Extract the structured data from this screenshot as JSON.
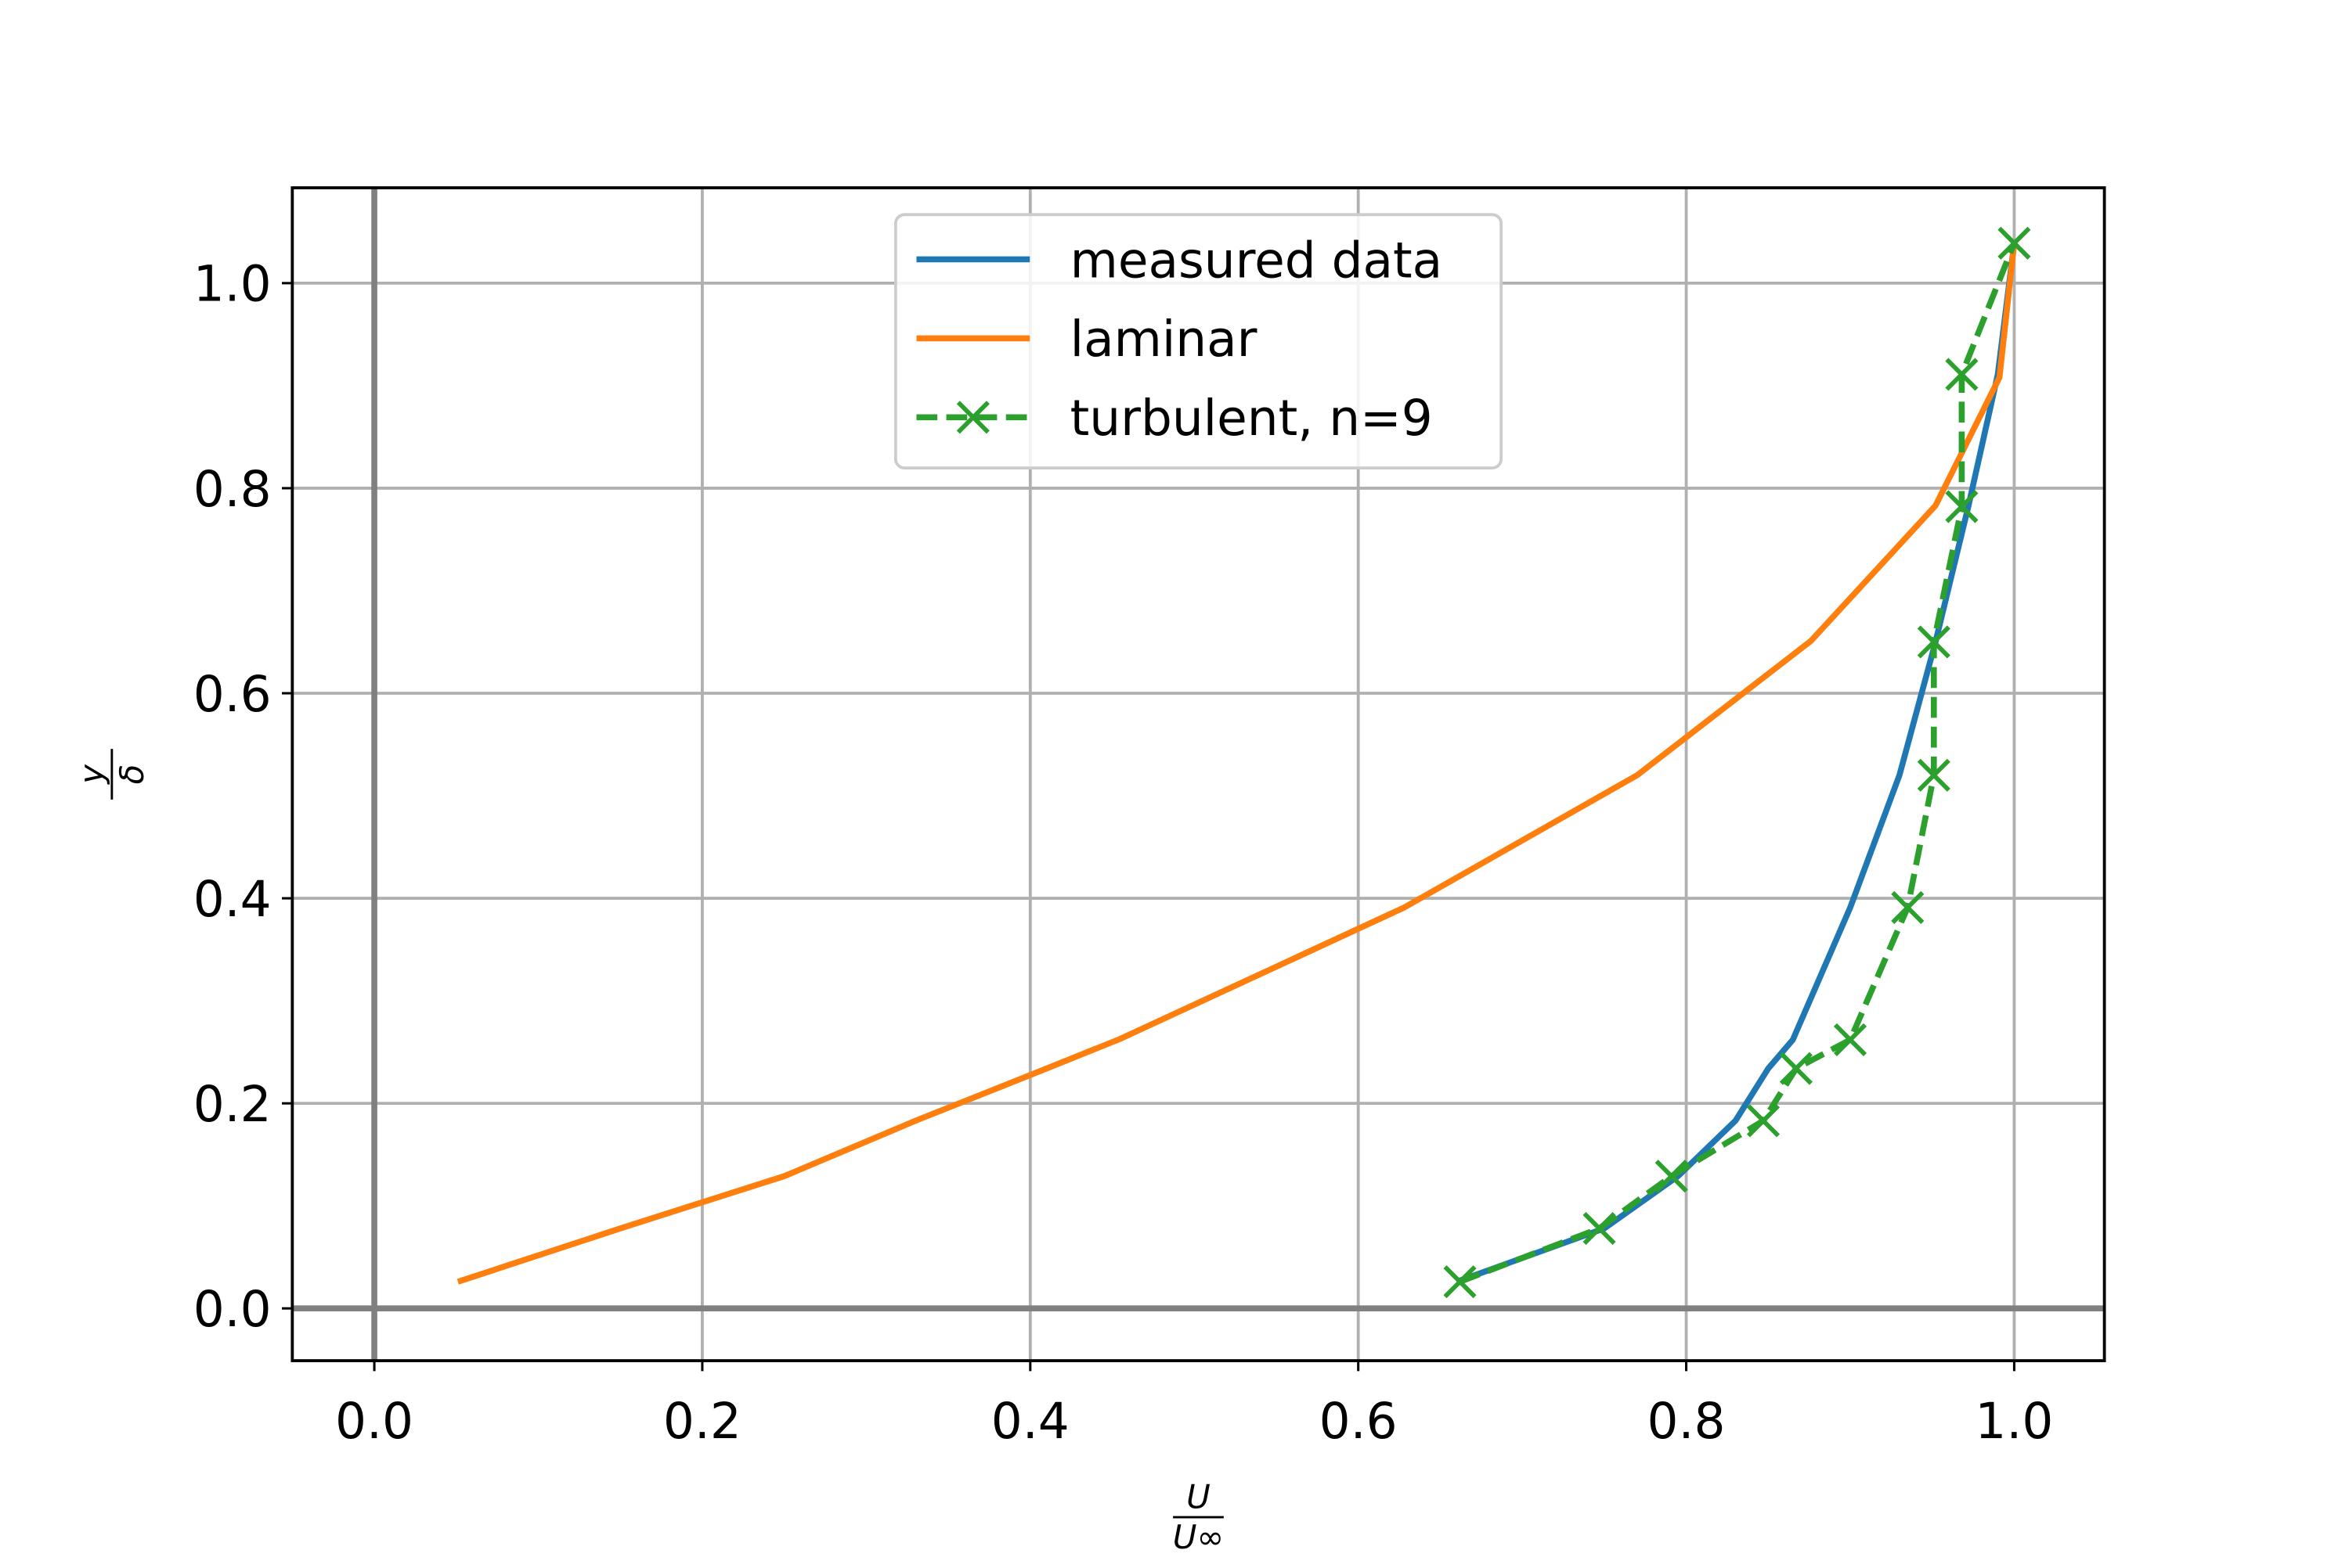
{
  "chart_data": {
    "type": "line",
    "xlabel": {
      "numerator": "U",
      "denominator": "U∞"
    },
    "ylabel": {
      "numerator": "y",
      "denominator": "δ"
    },
    "xlim": [
      -0.05,
      1.055
    ],
    "ylim": [
      -0.051,
      1.093
    ],
    "xticks": [
      {
        "value": 0,
        "label": "0.0"
      },
      0.2,
      0.4,
      0.6,
      0.8,
      {
        "value": 1,
        "label": "1.0"
      }
    ],
    "yticks": [
      {
        "value": 0,
        "label": "0.0"
      },
      0.2,
      0.4,
      0.6,
      0.8,
      {
        "value": 1,
        "label": "1.0"
      }
    ],
    "grid": true,
    "legend": "upper center",
    "series": [
      {
        "name": "measured data",
        "color": "#1f77b4",
        "linestyle": "solid",
        "marker": "none",
        "x": [
          0.66,
          0.75,
          0.795,
          0.83,
          0.85,
          0.865,
          0.9,
          0.93,
          0.952,
          0.972,
          0.99,
          1.0
        ],
        "values": [
          0.026,
          0.078,
          0.129,
          0.183,
          0.234,
          0.262,
          0.391,
          0.52,
          0.65,
          0.782,
          0.911,
          1.039
        ]
      },
      {
        "name": "laminar",
        "color": "#ff7f0e",
        "linestyle": "solid",
        "marker": "none",
        "x": [
          0.051,
          0.15,
          0.25,
          0.33,
          0.41,
          0.455,
          0.628,
          0.77,
          0.876,
          0.952,
          0.991,
          1.0
        ],
        "values": [
          0.026,
          0.078,
          0.129,
          0.183,
          0.234,
          0.263,
          0.391,
          0.52,
          0.651,
          0.783,
          0.908,
          1.039
        ]
      },
      {
        "name": "turbulent, n=9",
        "color": "#2ca02c",
        "linestyle": "dashed",
        "marker": "x",
        "x": [
          0.662,
          0.747,
          0.791,
          0.847,
          0.867,
          0.9,
          0.935,
          0.951,
          0.951,
          0.968,
          0.968,
          1.0
        ],
        "values": [
          0.026,
          0.078,
          0.129,
          0.183,
          0.234,
          0.262,
          0.391,
          0.52,
          0.65,
          0.782,
          0.911,
          1.039
        ]
      }
    ]
  }
}
